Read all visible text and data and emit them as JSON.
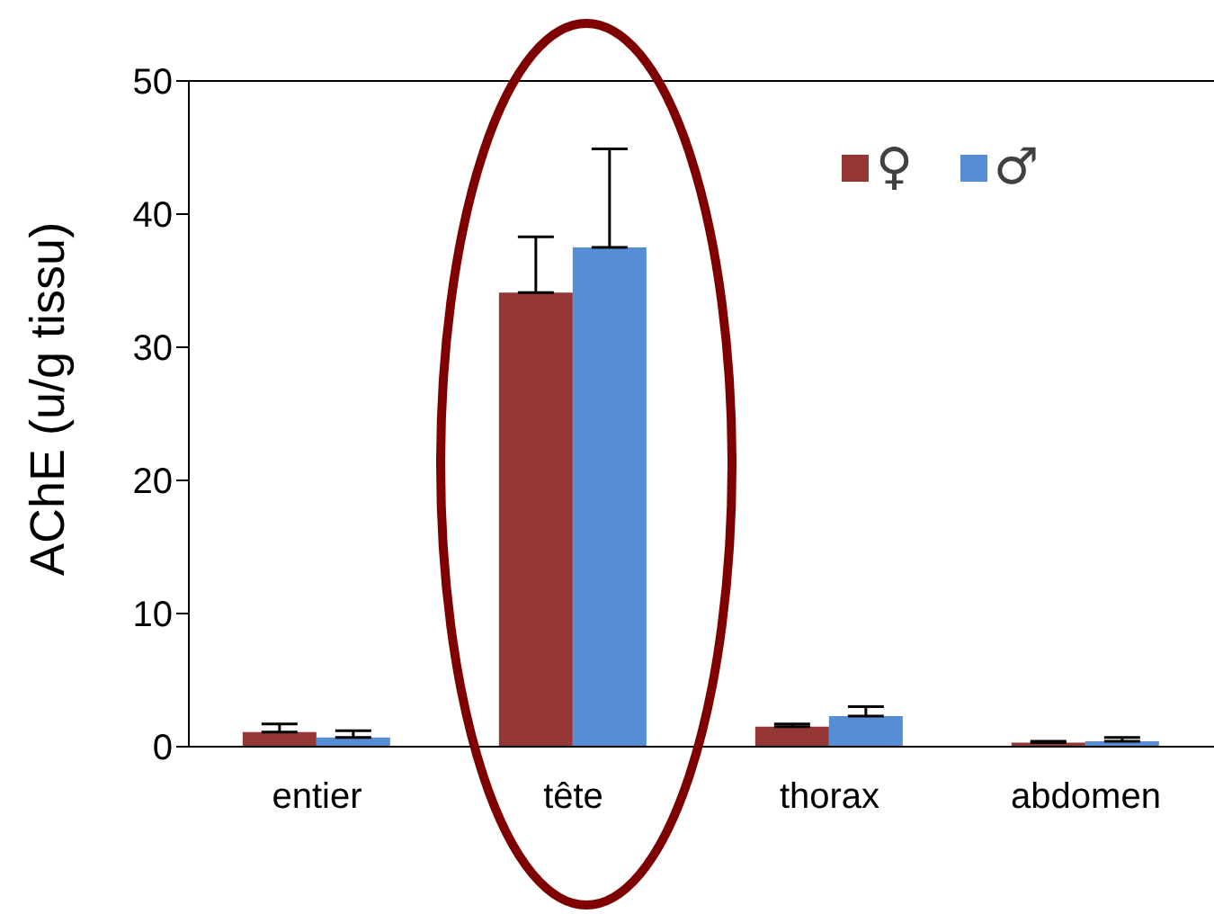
{
  "chart_data": {
    "type": "bar",
    "ylabel": "AChE (u/g tissu)",
    "categories": [
      "entier",
      "tête",
      "thorax",
      "abdomen"
    ],
    "series": [
      {
        "name": "♀",
        "color": "#953735",
        "values": [
          1.1,
          34.1,
          1.5,
          0.3
        ],
        "errors": [
          [
            1.1,
            1.7
          ],
          [
            34.1,
            38.3
          ],
          [
            1.5,
            1.7
          ],
          [
            0.3,
            0.4
          ]
        ]
      },
      {
        "name": "♂",
        "color": "#558ed5",
        "values": [
          0.7,
          37.5,
          2.3,
          0.4
        ],
        "errors": [
          [
            0.7,
            1.2
          ],
          [
            37.5,
            44.9
          ],
          [
            2.3,
            3.0
          ],
          [
            0.4,
            0.7
          ]
        ]
      }
    ],
    "ylim": [
      0,
      50
    ],
    "yticks": [
      0,
      10,
      20,
      30,
      40,
      50
    ],
    "grid": false,
    "legend": "top right"
  }
}
